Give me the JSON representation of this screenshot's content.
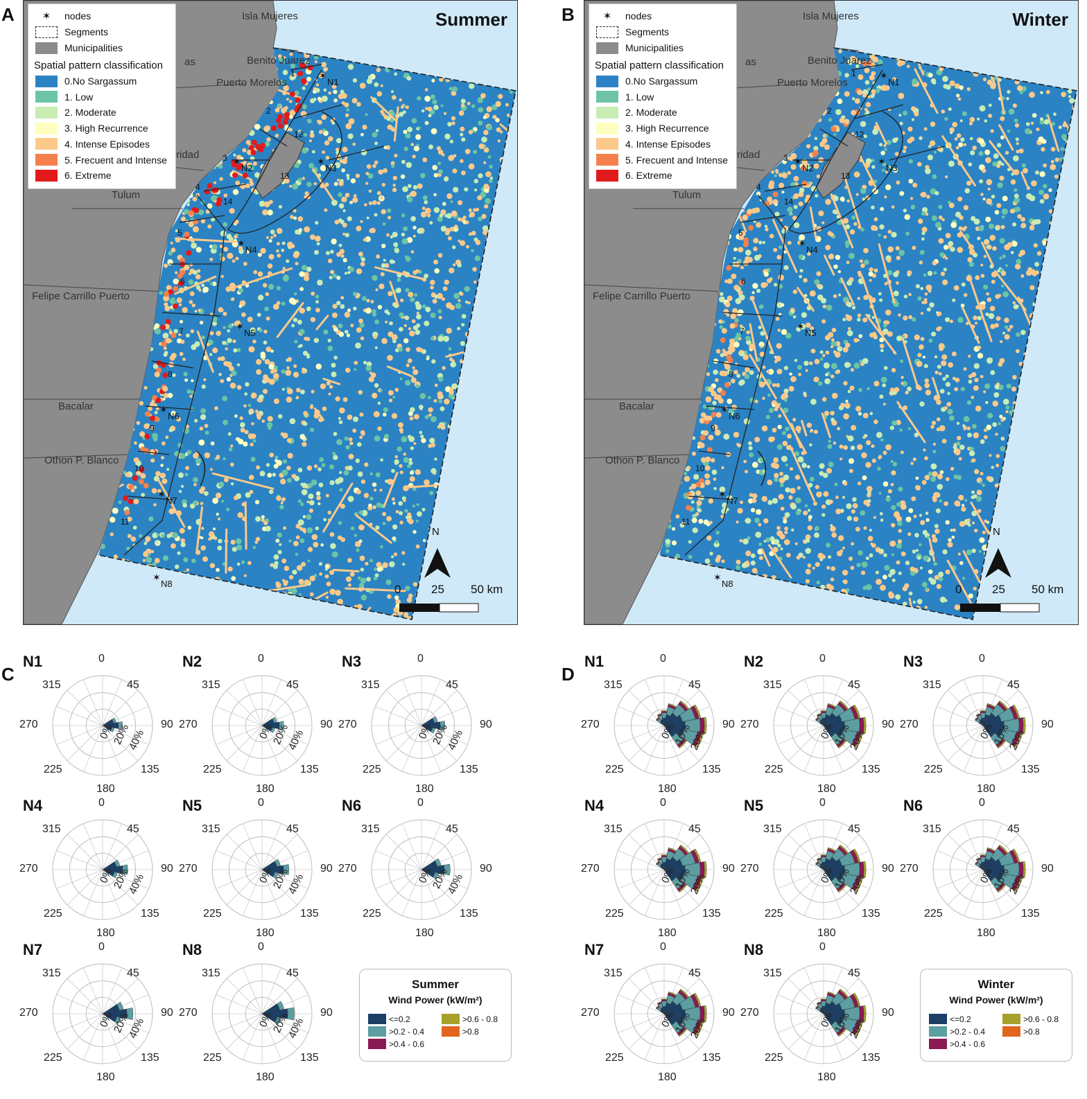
{
  "panels": [
    {
      "letter": "A",
      "season": "Summer",
      "legend": {
        "nodes": "nodes",
        "segments": "Segments",
        "municipalities": "Municipalities",
        "title": "Spatial pattern classification",
        "classes": [
          {
            "label": "0.No Sargassum",
            "color": "#2b83c4"
          },
          {
            "label": "1. Low",
            "color": "#6cc4a4"
          },
          {
            "label": "2. Moderate",
            "color": "#c8ecb4"
          },
          {
            "label": "3. High Recurrence",
            "color": "#fefec0"
          },
          {
            "label": "4. Intense Episodes",
            "color": "#fdc98a"
          },
          {
            "label": "5. Frecuent and Intense",
            "color": "#f4814d"
          },
          {
            "label": "6. Extreme",
            "color": "#e31a1c"
          }
        ]
      },
      "places": [
        "Isla Mujeres",
        "Benito Juarez",
        "Puerto Morelos",
        "ridad",
        "as",
        "Tulum",
        "Felipe Carrillo Puerto",
        "Bacalar",
        "Othon P. Blanco"
      ],
      "nodes": [
        "N1",
        "N2",
        "N3",
        "N4",
        "N5",
        "N6",
        "N7",
        "N8"
      ],
      "segments": [
        "1",
        "2",
        "3",
        "4",
        "5",
        "6",
        "7",
        "8",
        "9",
        "10",
        "11",
        "12",
        "13",
        "14"
      ],
      "scale": {
        "n": "N",
        "v0": "0",
        "v1": "25",
        "v2": "50 km"
      }
    },
    {
      "letter": "B",
      "season": "Winter",
      "legend": {
        "nodes": "nodes",
        "segments": "Segments",
        "municipalities": "Municipalities",
        "title": "Spatial pattern classification",
        "classes": [
          {
            "label": "0.No Sargassum",
            "color": "#2b83c4"
          },
          {
            "label": "1. Low",
            "color": "#6cc4a4"
          },
          {
            "label": "2. Moderate",
            "color": "#c8ecb4"
          },
          {
            "label": "3. High Recurrence",
            "color": "#fefec0"
          },
          {
            "label": "4. Intense Episodes",
            "color": "#fdc98a"
          },
          {
            "label": "5. Frecuent and Intense",
            "color": "#f4814d"
          },
          {
            "label": "6. Extreme",
            "color": "#e31a1c"
          }
        ]
      },
      "places": [
        "Isla Mujeres",
        "Benito Juarez",
        "Puerto Morelos",
        "ridad",
        "as",
        "Tulum",
        "Felipe Carrillo Puerto",
        "Bacalar",
        "Othon P. Blanco"
      ],
      "nodes": [
        "N1",
        "N2",
        "N3",
        "N4",
        "N5",
        "N6",
        "N7",
        "N8"
      ],
      "segments": [
        "1",
        "2",
        "3",
        "4",
        "5",
        "6",
        "7",
        "8",
        "9",
        "10",
        "11",
        "12",
        "13",
        "14"
      ],
      "scale": {
        "n": "N",
        "v0": "0",
        "v1": "25",
        "v2": "50 km"
      }
    }
  ],
  "roses": {
    "directions": [
      "0",
      "45",
      "90",
      "135",
      "180",
      "225",
      "270",
      "315"
    ],
    "summer": {
      "letter": "C",
      "ring_labels": [
        "0%",
        "20%",
        "40%"
      ],
      "nodes": [
        "N1",
        "N2",
        "N3",
        "N4",
        "N5",
        "N6",
        "N7",
        "N8"
      ]
    },
    "winter": {
      "letter": "D",
      "ring_labels": [
        "0%",
        "10%",
        "20%"
      ],
      "nodes": [
        "N1",
        "N2",
        "N3",
        "N4",
        "N5",
        "N6",
        "N7",
        "N8"
      ]
    }
  },
  "wind_legend": {
    "summer_title": "Summer",
    "winter_title": "Winter",
    "subtitle": "Wind Power (kW/m²)",
    "bins": [
      {
        "label": "<=0.2",
        "color": "#1c3f66"
      },
      {
        "label": ">0.2 - 0.4",
        "color": "#5c9ea1"
      },
      {
        "label": ">0.4 - 0.6",
        "color": "#8a1a53"
      },
      {
        "label": ">0.6 - 0.8",
        "color": "#a6a12a"
      },
      {
        "label": ">0.8",
        "color": "#e2651e"
      }
    ]
  },
  "colors": {
    "sea": "#cfe9f8",
    "land": "#8c8c8c",
    "no_sargassum": "#2b83c4"
  }
}
